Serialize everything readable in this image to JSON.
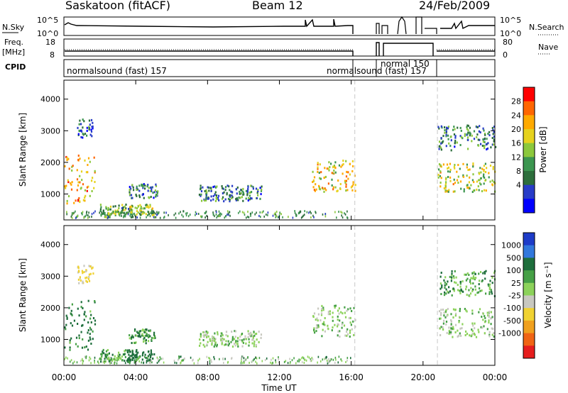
{
  "header": {
    "station": "Saskatoon (fitACF)",
    "beam": "Beam 12",
    "date": "24/Feb/2009"
  },
  "top_panels": {
    "nsky_label": "N.Sky",
    "nsky_ticks": [
      "10^5",
      "10^0"
    ],
    "nsearch_label": "N.Search",
    "freq_label": "Freq.",
    "freq_unit": "[MHz]",
    "freq_ticks": [
      "18",
      "8"
    ],
    "nave_label": "Nave",
    "nave_ticks": [
      "80",
      "0"
    ],
    "cpid_label": "CPID",
    "cpid_segments": [
      {
        "label": "normalsound (fast) 157",
        "start": 0.0,
        "end": 16.2
      },
      {
        "label": "normalsound (fast) 157",
        "start": 16.2,
        "end": 17.6
      },
      {
        "label": "normal 150",
        "start": 17.6,
        "end": 20.8
      },
      {
        "label": "",
        "start": 20.8,
        "end": 24.0
      }
    ]
  },
  "power_panel": {
    "ylabel": "Slant Range [km]",
    "yticks": [
      1000,
      2000,
      3000,
      4000
    ],
    "ylim": [
      180,
      4600
    ],
    "cbar_label": "Power [dB]",
    "cbar_ticks": [
      "28",
      "24",
      "20",
      "16",
      "12",
      "8",
      "4"
    ],
    "cbar_colors": [
      "#ff0000",
      "#ff6600",
      "#ffaa00",
      "#e6d21e",
      "#8cc83c",
      "#3c9650",
      "#2d6e3c",
      "#283cc8",
      "#0000ff"
    ]
  },
  "velocity_panel": {
    "ylabel": "Slant Range [km]",
    "yticks": [
      1000,
      2000,
      3000,
      4000
    ],
    "ylim": [
      180,
      4600
    ],
    "cbar_label": "Velocity [m s⁻¹]",
    "cbar_ticks": [
      "1000",
      "500",
      "100",
      "25",
      "-25",
      "-100",
      "-500",
      "-1000"
    ],
    "cbar_colors": [
      "#1e3cc8",
      "#3278dc",
      "#1e6e3c",
      "#46a046",
      "#8cd25a",
      "#c8c8c0",
      "#f0d232",
      "#f0a01e",
      "#f06414",
      "#e61e1e"
    ]
  },
  "xaxis": {
    "label": "Time UT",
    "ticks": [
      "00:00",
      "04:00",
      "08:00",
      "12:00",
      "16:00",
      "20:00",
      "00:00"
    ]
  },
  "chart_data": {
    "type": "heatmap",
    "title": "Saskatoon (fitACF)",
    "xlabel": "Time UT",
    "ylabel": "Slant Range [km]",
    "xlim_hours": [
      0,
      24
    ],
    "ylim_km": [
      180,
      4600
    ],
    "gaps_hours": [
      [
        16.2,
        17.6
      ],
      [
        17.8,
        20.8
      ]
    ],
    "echo_regions": [
      {
        "t0": 0.0,
        "t1": 1.7,
        "r0": 700,
        "r1": 2300,
        "power_db": 22,
        "velocity": 80
      },
      {
        "t0": 0.7,
        "t1": 1.6,
        "r0": 2800,
        "r1": 3400,
        "power_db": 8,
        "velocity": -100
      },
      {
        "t0": 2.0,
        "t1": 3.8,
        "r0": 300,
        "r1": 700,
        "power_db": 14,
        "velocity": 40
      },
      {
        "t0": 3.5,
        "t1": 5.0,
        "r0": 350,
        "r1": 700,
        "power_db": 16,
        "velocity": 200
      },
      {
        "t0": 3.6,
        "t1": 5.2,
        "r0": 900,
        "r1": 1350,
        "power_db": 10,
        "velocity": 60
      },
      {
        "t0": 7.5,
        "t1": 11.0,
        "r0": 800,
        "r1": 1300,
        "power_db": 10,
        "velocity": 0
      },
      {
        "t0": 13.8,
        "t1": 16.2,
        "r0": 1100,
        "r1": 2100,
        "power_db": 20,
        "velocity": 0
      },
      {
        "t0": 20.8,
        "t1": 24.0,
        "r0": 1100,
        "r1": 2000,
        "power_db": 18,
        "velocity": 0
      },
      {
        "t0": 20.8,
        "t1": 24.0,
        "r0": 2400,
        "r1": 3200,
        "power_db": 10,
        "velocity": 40
      }
    ]
  }
}
